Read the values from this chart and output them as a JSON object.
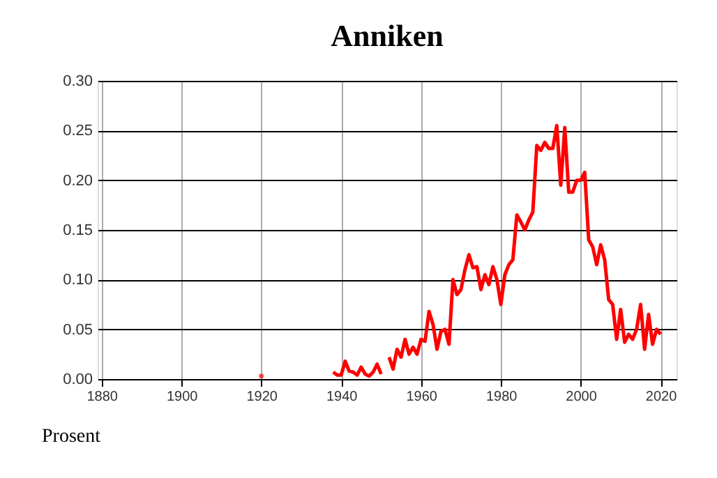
{
  "chart_data": {
    "type": "line",
    "title": "Anniken",
    "ylabel": "Prosent",
    "x": [
      1920,
      1921,
      1938,
      1939,
      1940,
      1941,
      1942,
      1943,
      1944,
      1945,
      1946,
      1947,
      1948,
      1949,
      1950,
      1951,
      1952,
      1953,
      1954,
      1955,
      1956,
      1957,
      1958,
      1959,
      1960,
      1961,
      1962,
      1963,
      1964,
      1965,
      1966,
      1967,
      1968,
      1969,
      1970,
      1971,
      1972,
      1973,
      1974,
      1975,
      1976,
      1977,
      1978,
      1979,
      1980,
      1981,
      1982,
      1983,
      1984,
      1985,
      1986,
      1987,
      1988,
      1989,
      1990,
      1991,
      1992,
      1993,
      1994,
      1995,
      1996,
      1997,
      1998,
      1999,
      2000,
      2001,
      2002,
      2003,
      2004,
      2005,
      2006,
      2007,
      2008,
      2009,
      2010,
      2011,
      2012,
      2013,
      2014,
      2015,
      2016,
      2017,
      2018,
      2019,
      2020
    ],
    "series": [
      {
        "color": "#ff0000",
        "values": [
          0.003,
          null,
          0.007,
          0.004,
          0.004,
          0.018,
          0.008,
          0.007,
          0.004,
          0.012,
          0.005,
          0.003,
          0.007,
          0.015,
          0.005,
          null,
          0.022,
          0.01,
          0.03,
          0.022,
          0.04,
          0.025,
          0.032,
          0.025,
          0.04,
          0.038,
          0.068,
          0.055,
          0.03,
          0.048,
          0.05,
          0.035,
          0.1,
          0.085,
          0.09,
          0.11,
          0.125,
          0.112,
          0.113,
          0.09,
          0.105,
          0.095,
          0.113,
          0.1,
          0.075,
          0.105,
          0.115,
          0.12,
          0.165,
          0.158,
          0.15,
          0.16,
          0.168,
          0.235,
          0.23,
          0.238,
          0.232,
          0.232,
          0.255,
          0.195,
          0.253,
          0.188,
          0.188,
          0.2,
          0.2,
          0.208,
          0.14,
          0.133,
          0.115,
          0.135,
          0.12,
          0.08,
          0.075,
          0.04,
          0.07,
          0.037,
          0.045,
          0.04,
          0.05,
          0.075,
          0.03,
          0.065,
          0.035,
          0.05,
          0.045
        ]
      }
    ],
    "xlim": [
      1879,
      2024
    ],
    "xticks": [
      1880,
      1900,
      1920,
      1940,
      1960,
      1980,
      2000,
      2020
    ],
    "ylim": [
      0,
      0.3
    ],
    "yticks": [
      {
        "value": 0,
        "label": "0.00"
      },
      {
        "value": 0.05,
        "label": "0.05"
      },
      {
        "value": 0.1,
        "label": "0.10"
      },
      {
        "value": 0.15,
        "label": "0.15"
      },
      {
        "value": 0.2,
        "label": "0.20"
      },
      {
        "value": 0.25,
        "label": "0.25"
      },
      {
        "value": 0.3,
        "label": "0.30"
      }
    ],
    "grid": true,
    "legend": false,
    "marker": "none",
    "line_style": "solid"
  }
}
